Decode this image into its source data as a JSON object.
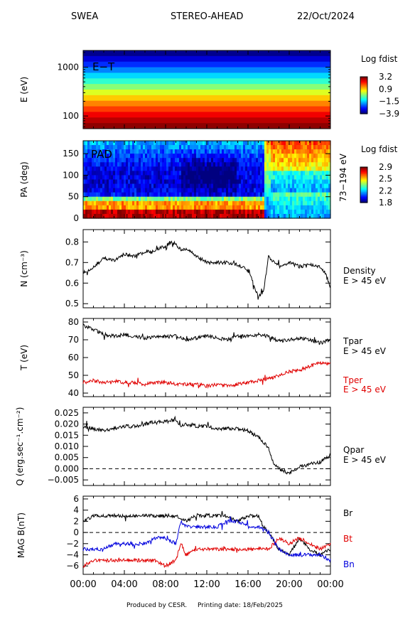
{
  "header": {
    "instrument": "SWEA",
    "spacecraft": "STEREO-AHEAD",
    "date": "22/Oct/2024"
  },
  "footer": {
    "produced": "Produced by CESR.",
    "printing": "Printing date: 18/Feb/2025"
  },
  "x_ticks": [
    "00:00",
    "04:00",
    "08:00",
    "12:00",
    "16:00",
    "20:00",
    "00:00"
  ],
  "colors": {
    "black": "#000000",
    "red": "#e00000",
    "blue": "#0000dd"
  },
  "chart_data": [
    {
      "type": "heatmap",
      "id": "energy_time",
      "panel_label": "E−T",
      "ylabel": "E (eV)",
      "yscale": "log",
      "ylim": [
        55,
        2200
      ],
      "y_ticks": [
        {
          "v": 1000,
          "l": "1000"
        },
        {
          "v": 100,
          "l": "100"
        }
      ],
      "colorbar": {
        "title": "Log fdist",
        "ticks": [
          "3.2",
          "0.9",
          "−1.5",
          "−3.9"
        ],
        "range": [
          -3.9,
          3.2
        ]
      },
      "energy_bands_log_fdist": [
        -3.8,
        -3.3,
        -2.7,
        -2.1,
        -1.5,
        -0.9,
        -0.3,
        0.3,
        0.9,
        1.4,
        1.9,
        2.4,
        2.8,
        3.1
      ]
    },
    {
      "type": "heatmap",
      "id": "pitch_angle",
      "panel_label": "PAD",
      "ylabel": "PA (deg)",
      "ylim": [
        0,
        180
      ],
      "y_ticks": [
        {
          "v": 0,
          "l": "0"
        },
        {
          "v": 50,
          "l": "50"
        },
        {
          "v": 100,
          "l": "100"
        },
        {
          "v": 150,
          "l": "150"
        }
      ],
      "right_label": "73−194 eV",
      "colorbar": {
        "title": "Log fdist",
        "ticks": [
          "2.9",
          "2.5",
          "2.2",
          "1.8"
        ],
        "range": [
          1.8,
          2.9
        ]
      }
    },
    {
      "type": "line",
      "id": "density",
      "ylabel": "N (cm⁻³)",
      "ylim": [
        0.48,
        0.86
      ],
      "y_ticks": [
        {
          "v": 0.5,
          "l": "0.5"
        },
        {
          "v": 0.6,
          "l": "0.6"
        },
        {
          "v": 0.7,
          "l": "0.7"
        },
        {
          "v": 0.8,
          "l": "0.8"
        }
      ],
      "legend": [
        {
          "text": "Density",
          "color": "#000000"
        },
        {
          "text": "E > 45 eV",
          "color": "#000000"
        }
      ],
      "series": [
        {
          "color": "#000000",
          "x": [
            0,
            1,
            2,
            3,
            4,
            5,
            6,
            7,
            8,
            8.5,
            9,
            9.5,
            10,
            11,
            12,
            13,
            14,
            15,
            16,
            16.5,
            17,
            17.5,
            18,
            18.5,
            19,
            20,
            21,
            22,
            23,
            23.5,
            24
          ],
          "y": [
            0.65,
            0.68,
            0.72,
            0.71,
            0.74,
            0.73,
            0.75,
            0.76,
            0.78,
            0.8,
            0.79,
            0.76,
            0.77,
            0.73,
            0.7,
            0.7,
            0.7,
            0.69,
            0.66,
            0.6,
            0.53,
            0.56,
            0.73,
            0.7,
            0.68,
            0.7,
            0.68,
            0.69,
            0.68,
            0.65,
            0.58
          ]
        }
      ]
    },
    {
      "type": "line",
      "id": "temperature",
      "ylabel": "T (eV)",
      "ylim": [
        38,
        82
      ],
      "y_ticks": [
        {
          "v": 40,
          "l": "40"
        },
        {
          "v": 50,
          "l": "50"
        },
        {
          "v": 60,
          "l": "60"
        },
        {
          "v": 70,
          "l": "70"
        },
        {
          "v": 80,
          "l": "80"
        }
      ],
      "legend": [
        {
          "text": "Tpar",
          "color": "#000000"
        },
        {
          "text": "E > 45 eV",
          "color": "#000000"
        },
        {
          "text": "Tper",
          "color": "#e00000"
        },
        {
          "text": "E > 45 eV",
          "color": "#e00000"
        }
      ],
      "series": [
        {
          "name": "Tpar",
          "color": "#000000",
          "x": [
            0,
            1,
            2,
            3,
            4,
            5,
            6,
            7,
            8,
            9,
            10,
            11,
            12,
            13,
            14,
            15,
            16,
            17,
            18,
            19,
            20,
            21,
            22,
            23,
            24
          ],
          "y": [
            78,
            76,
            73,
            72,
            73,
            72,
            71,
            72,
            72,
            72,
            70,
            71,
            72,
            71,
            70,
            72,
            72,
            73,
            72,
            69,
            70,
            71,
            70,
            68,
            70
          ]
        },
        {
          "name": "Tper",
          "color": "#e00000",
          "x": [
            0,
            1,
            2,
            3,
            4,
            5,
            6,
            7,
            8,
            9,
            10,
            11,
            12,
            13,
            14,
            15,
            16,
            17,
            18,
            19,
            20,
            21,
            22,
            23,
            24
          ],
          "y": [
            46,
            47,
            46,
            47,
            46,
            46,
            45,
            46,
            46,
            45,
            45,
            45,
            44,
            45,
            44,
            45,
            46,
            47,
            48,
            50,
            52,
            53,
            55,
            57,
            56
          ]
        }
      ]
    },
    {
      "type": "line",
      "id": "heat_flux",
      "ylabel": "Q (erg.sec⁻¹.cm⁻²)",
      "ylim": [
        -0.0075,
        0.0275
      ],
      "y_ticks": [
        {
          "v": 0.025,
          "l": "0.025"
        },
        {
          "v": 0.02,
          "l": "0.020"
        },
        {
          "v": 0.015,
          "l": "0.015"
        },
        {
          "v": 0.01,
          "l": "0.010"
        },
        {
          "v": 0.005,
          "l": "0.005"
        },
        {
          "v": 0,
          "l": "0.000"
        },
        {
          "v": -0.005,
          "l": "−0.005"
        }
      ],
      "zero_line": true,
      "legend": [
        {
          "text": "Qpar",
          "color": "#000000"
        },
        {
          "text": "E > 45 eV",
          "color": "#000000"
        }
      ],
      "series": [
        {
          "color": "#000000",
          "x": [
            0,
            1,
            2,
            3,
            4,
            5,
            6,
            7,
            8,
            9,
            9.5,
            10,
            11,
            12,
            13,
            14,
            15,
            16,
            17,
            17.5,
            18,
            18.5,
            19,
            20,
            21,
            22,
            23,
            24
          ],
          "y": [
            0.019,
            0.018,
            0.017,
            0.018,
            0.019,
            0.019,
            0.02,
            0.021,
            0.021,
            0.022,
            0.019,
            0.02,
            0.019,
            0.019,
            0.018,
            0.018,
            0.018,
            0.017,
            0.014,
            0.012,
            0.009,
            0.002,
            0.0,
            -0.002,
            0.001,
            0.002,
            0.003,
            0.006
          ]
        }
      ]
    },
    {
      "type": "line",
      "id": "magnetic_field",
      "ylabel": "MAG B(nT)",
      "ylim": [
        -7.5,
        6.5
      ],
      "y_ticks": [
        {
          "v": 6,
          "l": "6"
        },
        {
          "v": 4,
          "l": "4"
        },
        {
          "v": 2,
          "l": "2"
        },
        {
          "v": 0,
          "l": "0"
        },
        {
          "v": -2,
          "l": "−2"
        },
        {
          "v": -4,
          "l": "−4"
        },
        {
          "v": -6,
          "l": "−6"
        }
      ],
      "zero_line": true,
      "legend": [
        {
          "text": "Br",
          "color": "#000000"
        },
        {
          "text": "Bt",
          "color": "#e00000"
        },
        {
          "text": "Bn",
          "color": "#0000dd"
        }
      ],
      "series": [
        {
          "name": "Br",
          "color": "#000000",
          "x": [
            0,
            1,
            2,
            3,
            4,
            5,
            6,
            7,
            8,
            9,
            10,
            11,
            12,
            13,
            14,
            15,
            16,
            17,
            17.5,
            18,
            19,
            20,
            21,
            22,
            23,
            24
          ],
          "y": [
            2,
            3,
            3,
            3,
            3,
            3,
            3,
            3,
            3,
            3,
            2,
            3,
            3,
            3,
            3,
            2,
            3,
            3,
            1,
            0,
            -3,
            -4,
            -1,
            -3,
            -4,
            -3
          ]
        },
        {
          "name": "Bt",
          "color": "#e00000",
          "x": [
            0,
            1,
            2,
            3,
            4,
            5,
            6,
            7,
            8,
            9,
            9.5,
            10,
            11,
            12,
            13,
            14,
            15,
            16,
            17,
            18,
            19,
            20,
            21,
            22,
            23,
            24
          ],
          "y": [
            -6,
            -5,
            -5,
            -5,
            -5,
            -5,
            -5,
            -5,
            -6,
            -5,
            -2,
            -4,
            -3,
            -3,
            -3,
            -3,
            -3,
            -3,
            -3,
            -3,
            -1,
            -2,
            -1,
            -2,
            -3,
            -2
          ]
        },
        {
          "name": "Bn",
          "color": "#0000dd",
          "x": [
            0,
            1,
            2,
            3,
            4,
            5,
            6,
            7,
            8,
            9,
            9.5,
            10,
            11,
            12,
            13,
            14,
            15,
            16,
            17,
            18,
            19,
            20,
            21,
            22,
            23,
            24
          ],
          "y": [
            -3,
            -3,
            -3,
            -2,
            -2,
            -2,
            -2,
            -1,
            -1,
            -2,
            2,
            1,
            1,
            1,
            1,
            2,
            2,
            1,
            1,
            0,
            -3,
            -4,
            -4,
            -4,
            -4,
            -5
          ]
        }
      ]
    }
  ]
}
